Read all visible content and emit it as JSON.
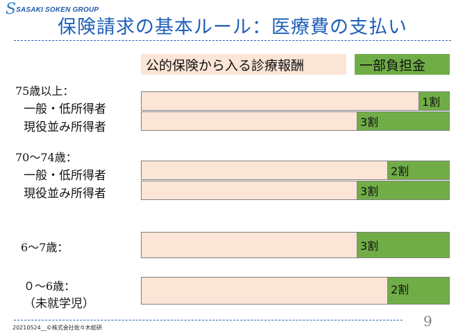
{
  "logo": {
    "mark": "S",
    "text": "SASAKI SOKEN GROUP"
  },
  "title": "保険請求の基本ルール：医療費の支払い",
  "legend": {
    "public": "公的保険から入る診療報酬",
    "copay": "一部負担金"
  },
  "groups": [
    {
      "heading": "75歳以上：",
      "rows": [
        {
          "label": "一般・低所得者",
          "copay_label": "1割",
          "copay_ratio": 0.1
        },
        {
          "label": "現役並み所得者",
          "copay_label": "3割",
          "copay_ratio": 0.3
        }
      ]
    },
    {
      "heading": "70～74歳：",
      "rows": [
        {
          "label": "一般・低所得者",
          "copay_label": "2割",
          "copay_ratio": 0.2
        },
        {
          "label": "現役並み所得者",
          "copay_label": "3割",
          "copay_ratio": 0.3
        }
      ]
    },
    {
      "heading": "6～7歳：",
      "rows": [
        {
          "label": "",
          "copay_label": "3割",
          "copay_ratio": 0.3
        }
      ]
    },
    {
      "heading": "０～6歳：",
      "rows": [
        {
          "label": "（未就学児）",
          "copay_label": "2割",
          "copay_ratio": 0.2
        }
      ]
    }
  ],
  "footer": "20210524__©株式会社佐々木総研",
  "page_number": "9",
  "colors": {
    "public": "#fbe5d6",
    "copay": "#70ad47",
    "title": "#1f5fb8"
  }
}
